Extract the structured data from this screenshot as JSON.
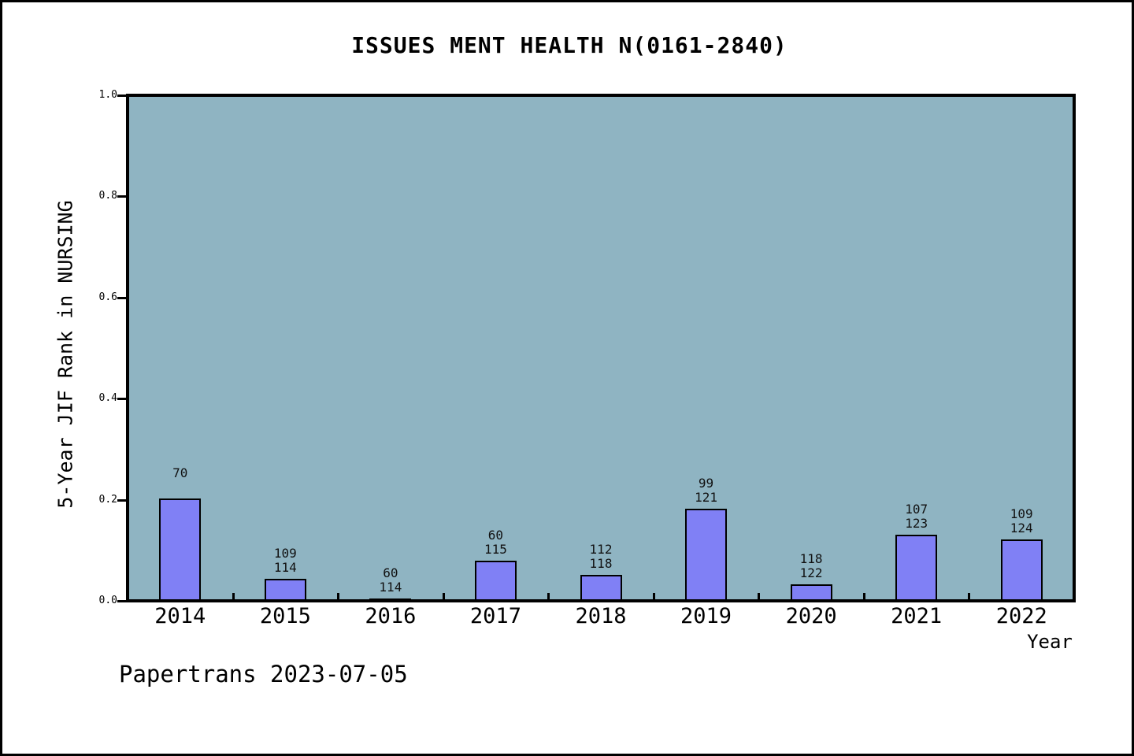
{
  "chart_data": {
    "type": "bar",
    "title": "ISSUES MENT HEALTH N(0161-2840)",
    "xlabel": "Year",
    "ylabel": "5-Year JIF Rank in NURSING",
    "ylim": [
      0.0,
      1.0
    ],
    "ytick_labels": [
      "0.0",
      "0.2",
      "0.4",
      "0.6",
      "0.8",
      "1.0"
    ],
    "ytick_values": [
      0.0,
      0.2,
      0.4,
      0.6,
      0.8,
      1.0
    ],
    "categories": [
      "2014",
      "2015",
      "2016",
      "2017",
      "2018",
      "2019",
      "2020",
      "2021",
      "2022"
    ],
    "values": [
      0.203,
      0.044,
      0.004,
      0.079,
      0.051,
      0.182,
      0.033,
      0.131,
      0.121
    ],
    "bar_labels": [
      [
        "70",
        ""
      ],
      [
        "109",
        "114"
      ],
      [
        "60",
        "114"
      ],
      [
        "60",
        "115"
      ],
      [
        "112",
        "118"
      ],
      [
        "99",
        "121"
      ],
      [
        "118",
        "122"
      ],
      [
        "107",
        "123"
      ],
      [
        "109",
        "124"
      ]
    ],
    "grid": false,
    "legend": null,
    "colors": {
      "plot_background": "#8FB4C2",
      "bar_fill": "#8080F5",
      "bar_edge": "#000000",
      "axis": "#000000",
      "text": "#000000"
    }
  },
  "footer": {
    "text": "Papertrans 2023-07-05"
  }
}
